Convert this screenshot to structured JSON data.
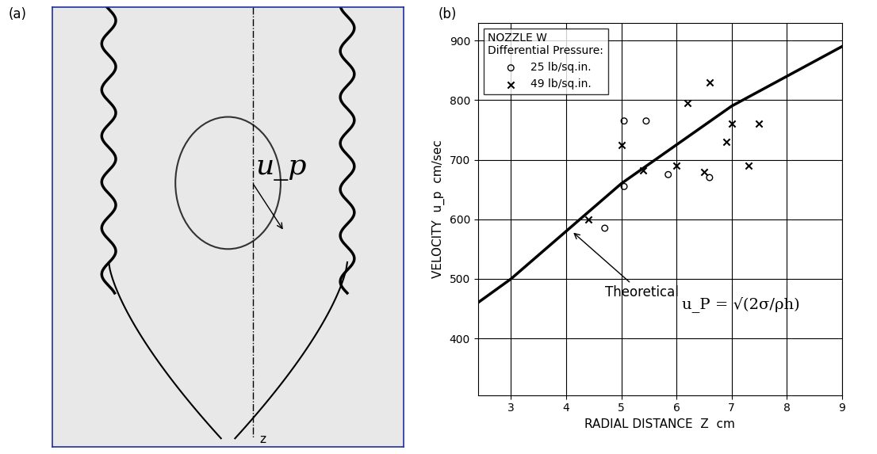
{
  "panel_a": {
    "label": "(a)",
    "annotations": [
      "u_p",
      "z"
    ]
  },
  "chart_data": {
    "type": "scatter",
    "label": "(b)",
    "legend_title": [
      "NOZZLE W",
      "Differential Pressure:"
    ],
    "legend": "upper left",
    "xlabel": "RADIAL DISTANCE  Z  cm",
    "ylabel": "VELOCITY  u_p  cm/sec",
    "xlim": [
      2.4,
      9
    ],
    "ylim": [
      305,
      930
    ],
    "xticks": [
      3,
      4,
      5,
      6,
      7,
      8,
      9
    ],
    "yticks": [
      400,
      500,
      600,
      700,
      800,
      900
    ],
    "grid": true,
    "series": [
      {
        "name": "25 lb/sq.in.",
        "type": "scatter",
        "marker": "o",
        "color": "#000000",
        "x": [
          4.7,
          5.05,
          5.05,
          5.45,
          5.85,
          6.6
        ],
        "values": [
          585,
          655,
          765,
          765,
          675,
          670
        ]
      },
      {
        "name": "49 lb/sq.in.",
        "type": "scatter",
        "marker": "x",
        "color": "#000000",
        "x": [
          4.4,
          5.0,
          5.4,
          6.0,
          6.2,
          6.5,
          6.6,
          6.9,
          7.0,
          7.3,
          7.5
        ],
        "values": [
          600,
          725,
          682,
          690,
          795,
          680,
          830,
          730,
          760,
          690,
          760
        ]
      },
      {
        "name": "Theoretical",
        "type": "line",
        "color": "#000000",
        "x": [
          2.4,
          3,
          4,
          5,
          6,
          7,
          8,
          9
        ],
        "values": [
          460,
          500,
          580,
          660,
          725,
          790,
          840,
          890
        ]
      }
    ],
    "annotations": [
      "u_P = √(2σ/ρh)"
    ]
  }
}
